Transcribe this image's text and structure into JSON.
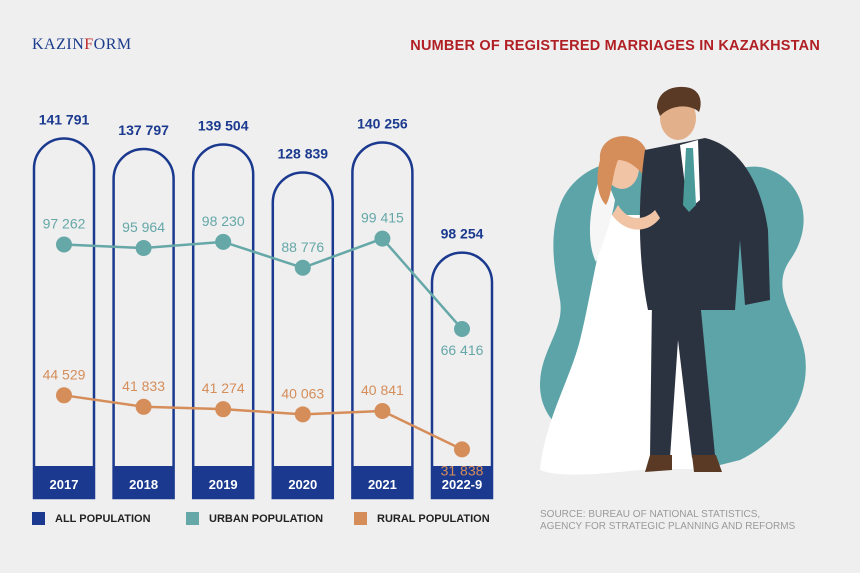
{
  "logo": {
    "text_before": "KAZIN",
    "text_accent": "F",
    "text_after": "ORM"
  },
  "title": "NUMBER OF REGISTERED MARRIAGES IN KAZAKHSTAN",
  "source": {
    "line1": "SOURCE: BUREAU OF NATIONAL STATISTICS,",
    "line2": "AGENCY FOR STRATEGIC PLANNING AND REFORMS"
  },
  "colors": {
    "all": "#1b3a8f",
    "urban": "#66a7a8",
    "rural": "#d58d5a",
    "background": "#efefef",
    "blob": "#5ca4a8"
  },
  "illustration": {
    "icon": "bride-and-groom-illustration"
  },
  "chart_data": {
    "type": "bar",
    "categories": [
      "2017",
      "2018",
      "2019",
      "2020",
      "2021",
      "2022-9"
    ],
    "series": [
      {
        "name": "ALL POPULATION",
        "values": [
          141791,
          137797,
          139504,
          128839,
          140256,
          98254
        ],
        "labels": [
          "141 791",
          "137 797",
          "139 504",
          "128 839",
          "140 256",
          "98 254"
        ],
        "style": "bar-outline"
      },
      {
        "name": "URBAN POPULATION",
        "values": [
          97262,
          95964,
          98230,
          88776,
          99415,
          66416
        ],
        "labels": [
          "97 262",
          "95 964",
          "98 230",
          "88 776",
          "99 415",
          "66 416"
        ],
        "style": "line"
      },
      {
        "name": "RURAL POPULATION",
        "values": [
          44529,
          41833,
          41274,
          40063,
          40841,
          31838
        ],
        "labels": [
          "44 529",
          "41 833",
          "41 274",
          "40 063",
          "40 841",
          "31 838"
        ],
        "style": "line"
      }
    ],
    "legend_position": "bottom",
    "grid": false
  }
}
